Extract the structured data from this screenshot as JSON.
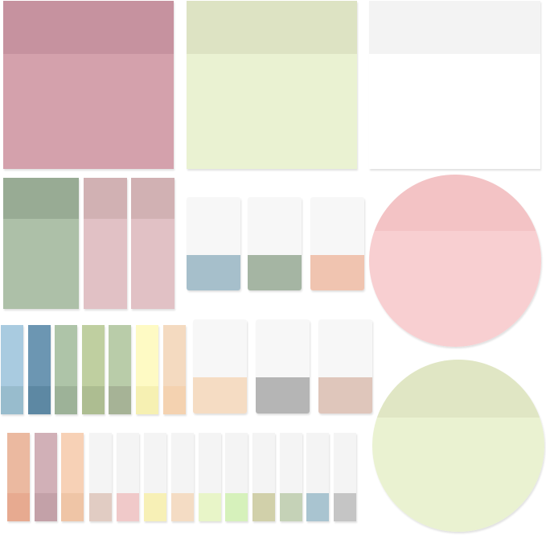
{
  "notes": [
    {
      "shape": "square",
      "top": "#c6929f",
      "bottom": "#d4a1ac"
    },
    {
      "shape": "square",
      "top": "#dde3c3",
      "bottom": "#eaf2d2"
    },
    {
      "shape": "square",
      "top": "#f3f3f3",
      "bottom": "#ffffff"
    },
    {
      "shape": "rect",
      "top": "#98ab94",
      "bottom": "#adc0a8"
    },
    {
      "shape": "rect",
      "top": "#d1b1b3",
      "bottom": "#e1c1c5"
    },
    {
      "shape": "rect",
      "top": "#d1b1b3",
      "bottom": "#e1c1c5"
    },
    {
      "shape": "tab",
      "top": "#f7f7f7",
      "bottom": "#a6bfcb"
    },
    {
      "shape": "tab",
      "top": "#f7f7f7",
      "bottom": "#a5b5a3"
    },
    {
      "shape": "tab",
      "top": "#f7f7f7",
      "bottom": "#f0c4b0"
    },
    {
      "shape": "circle",
      "top": "#f3c3c5",
      "bottom": "#f8cfd1"
    },
    {
      "shape": "circle",
      "top": "#e0e6c4",
      "bottom": "#eaf2d1"
    },
    {
      "shape": "strip",
      "top": "#a9cbe0",
      "bottom": "#98bccd"
    },
    {
      "shape": "strip",
      "top": "#6c96b2",
      "bottom": "#5d88a3"
    },
    {
      "shape": "strip",
      "top": "#aec4a8",
      "bottom": "#9db298"
    },
    {
      "shape": "strip",
      "top": "#bfcfa0",
      "bottom": "#adbd91"
    },
    {
      "shape": "strip",
      "top": "#b9cca9",
      "bottom": "#a6b396"
    },
    {
      "shape": "strip",
      "top": "#fefac4",
      "bottom": "#f6f0b2"
    },
    {
      "shape": "strip",
      "top": "#f4dac0",
      "bottom": "#f4d2b0"
    },
    {
      "shape": "tab",
      "top": "#f7f7f7",
      "bottom": "#f5dcc3"
    },
    {
      "shape": "tab",
      "top": "#f7f7f7",
      "bottom": "#b5b5b5"
    },
    {
      "shape": "tab",
      "top": "#f7f7f7",
      "bottom": "#dfc6bb"
    },
    {
      "shape": "strip",
      "top": "#ebb9a0",
      "bottom": "#e7aa90"
    },
    {
      "shape": "strip",
      "top": "#d1b0b7",
      "bottom": "#c3a1a8"
    },
    {
      "shape": "strip",
      "top": "#f7d1b6",
      "bottom": "#efc5a6"
    },
    {
      "shape": "strip",
      "top": "#f4f4f4",
      "bottom": "#e1ccc3"
    },
    {
      "shape": "strip",
      "top": "#f4f4f4",
      "bottom": "#f0c9c9"
    },
    {
      "shape": "strip",
      "top": "#f4f4f4",
      "bottom": "#f7f0b6"
    },
    {
      "shape": "strip",
      "top": "#f4f4f4",
      "bottom": "#f4dcc4"
    },
    {
      "shape": "strip",
      "top": "#f4f4f4",
      "bottom": "#e8f5c8"
    },
    {
      "shape": "strip",
      "top": "#f4f4f4",
      "bottom": "#d6f1bb"
    },
    {
      "shape": "strip",
      "top": "#f4f4f4",
      "bottom": "#d1d0aa"
    },
    {
      "shape": "strip",
      "top": "#f4f4f4",
      "bottom": "#c5d2b7"
    },
    {
      "shape": "strip",
      "top": "#f4f4f4",
      "bottom": "#a9c4d0"
    },
    {
      "shape": "strip",
      "top": "#f4f4f4",
      "bottom": "#c5c5c5"
    }
  ]
}
